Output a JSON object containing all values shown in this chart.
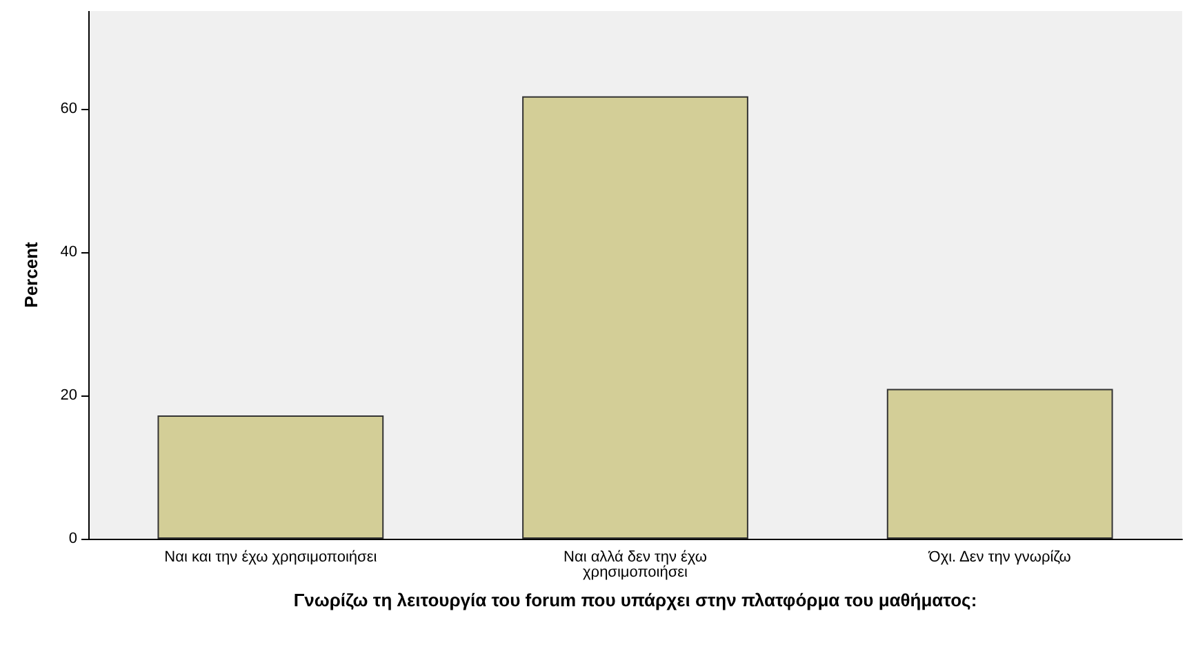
{
  "chart_data": {
    "type": "bar",
    "xlabel": "Γνωρίζω τη λειτουργία του forum που υπάρχει στην πλατφόρμα του μαθήματος:",
    "ylabel": "Percent",
    "categories": [
      "Ναι και την έχω χρησιμοποιήσει",
      "Ναι αλλά δεν την έχω\nχρησιμοποιήσει",
      "Όχι. Δεν την γνωρίζω"
    ],
    "values": [
      17.2,
      61.7,
      20.9
    ],
    "color": "#d3ce97",
    "ylim": [
      0,
      73.6
    ],
    "yticks": [
      0,
      20,
      40,
      60
    ],
    "grid": false
  }
}
